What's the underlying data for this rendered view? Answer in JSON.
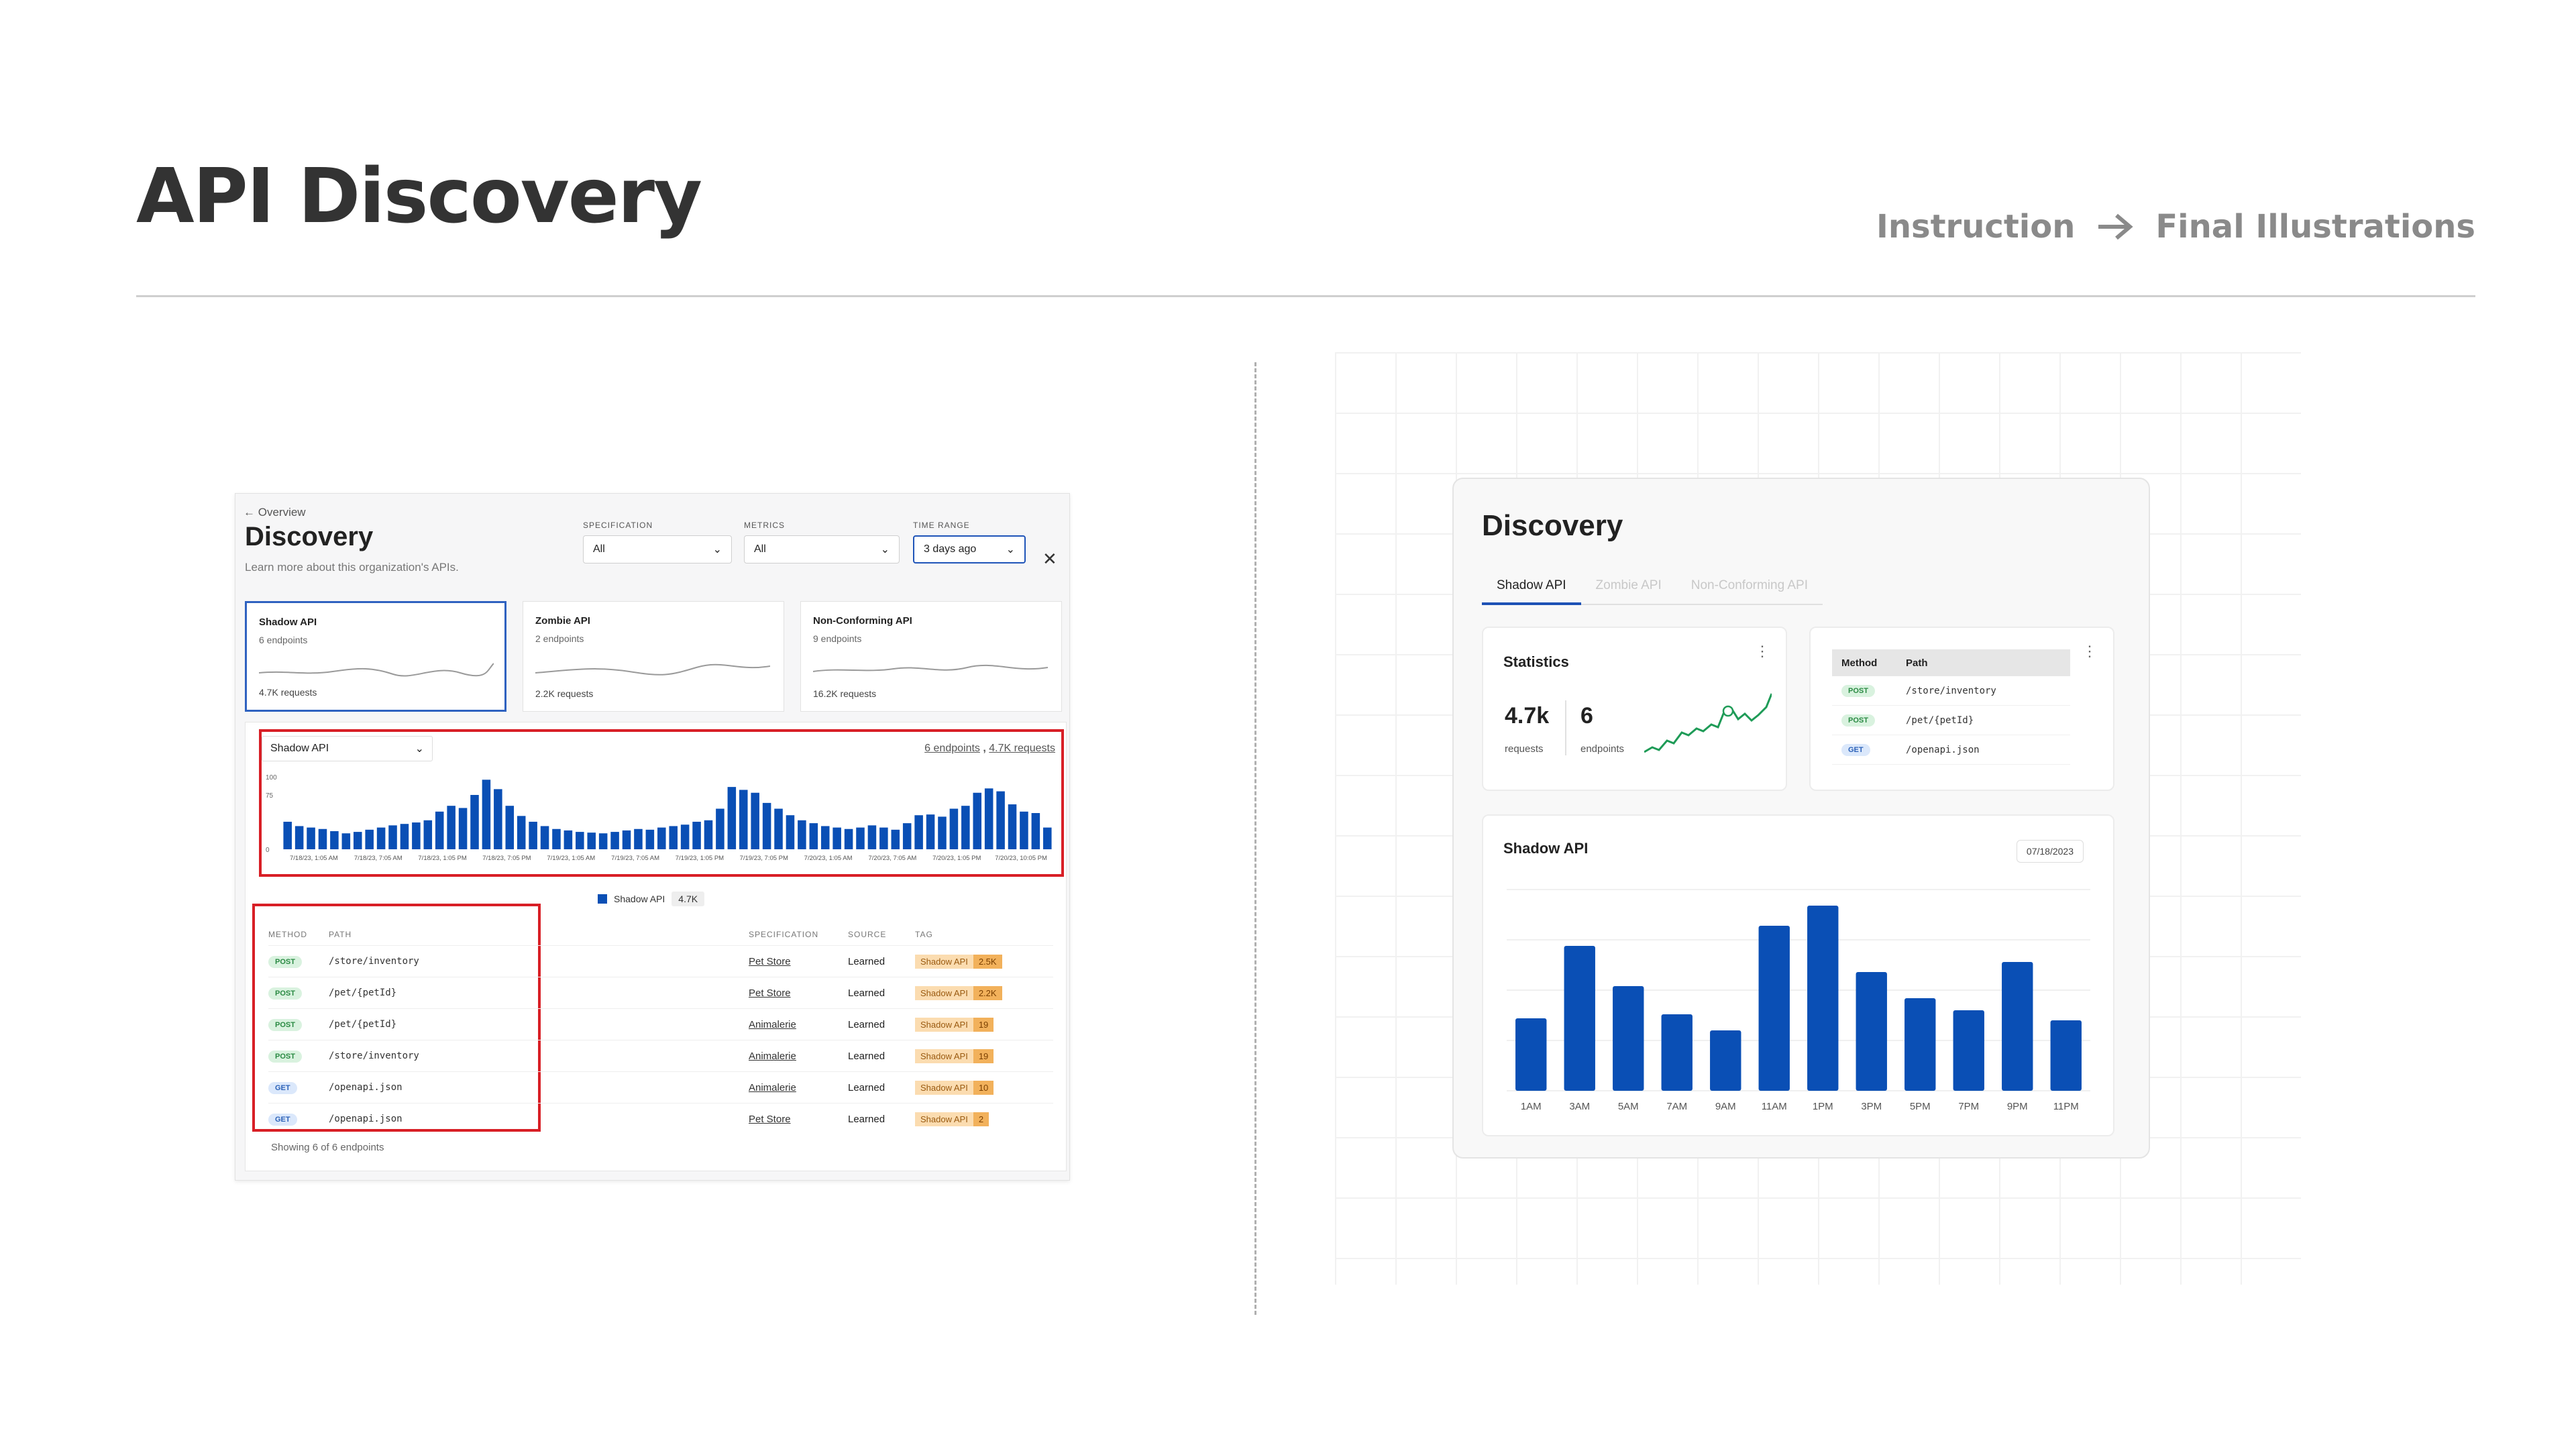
{
  "slide": {
    "title": "API Discovery",
    "nav": {
      "instruction": "Instruction",
      "final": "Final Illustrations"
    }
  },
  "colors": {
    "accent": "#0a4fb5",
    "highlight": "#d81f26",
    "post": "#2a8a43",
    "get": "#2c62b8"
  },
  "instruction": {
    "back_label": "Overview",
    "title": "Discovery",
    "subtitle": "Learn more about this organization's APIs.",
    "filters": [
      {
        "label": "SPECIFICATION",
        "value": "All"
      },
      {
        "label": "METRICS",
        "value": "All"
      },
      {
        "label": "TIME RANGE",
        "value": "3 days ago"
      }
    ],
    "cards": [
      {
        "title": "Shadow API",
        "endpoints": "6 endpoints",
        "requests": "4.7K requests"
      },
      {
        "title": "Zombie API",
        "endpoints": "2 endpoints",
        "requests": "2.2K requests"
      },
      {
        "title": "Non-Conforming API",
        "endpoints": "9 endpoints",
        "requests": "16.2K requests"
      }
    ],
    "series_select": "Shadow API",
    "links": {
      "endpoints": "6 endpoints",
      "sep": ",",
      "requests": "4.7K requests"
    },
    "legend": {
      "name": "Shadow API",
      "count": "4.7K"
    },
    "table": {
      "headers": [
        "METHOD",
        "PATH",
        "SPECIFICATION",
        "SOURCE",
        "TAG"
      ],
      "rows": [
        {
          "method": "POST",
          "path": "/store/inventory",
          "spec": "Pet Store",
          "source": "Learned",
          "tag": "Shadow API",
          "count": "2.5K"
        },
        {
          "method": "POST",
          "path": "/pet/{petId}",
          "spec": "Pet Store",
          "source": "Learned",
          "tag": "Shadow API",
          "count": "2.2K"
        },
        {
          "method": "POST",
          "path": "/pet/{petId}",
          "spec": "Animalerie",
          "source": "Learned",
          "tag": "Shadow API",
          "count": "19"
        },
        {
          "method": "POST",
          "path": "/store/inventory",
          "spec": "Animalerie",
          "source": "Learned",
          "tag": "Shadow API",
          "count": "19"
        },
        {
          "method": "GET",
          "path": "/openapi.json",
          "spec": "Animalerie",
          "source": "Learned",
          "tag": "Shadow API",
          "count": "10"
        },
        {
          "method": "GET",
          "path": "/openapi.json",
          "spec": "Pet Store",
          "source": "Learned",
          "tag": "Shadow API",
          "count": "2"
        }
      ]
    },
    "footer": "Showing 6 of 6 endpoints"
  },
  "final": {
    "title": "Discovery",
    "tabs": [
      "Shadow API",
      "Zombie API",
      "Non-Conforming API"
    ],
    "stats": {
      "title": "Statistics",
      "requests_value": "4.7k",
      "requests_label": "requests",
      "endpoints_value": "6",
      "endpoints_label": "endpoints"
    },
    "endpoints_table": {
      "headers": [
        "Method",
        "Path"
      ],
      "rows": [
        {
          "method": "POST",
          "path": "/store/inventory"
        },
        {
          "method": "POST",
          "path": "/pet/{petId}"
        },
        {
          "method": "GET",
          "path": "/openapi.json"
        }
      ]
    },
    "chart_title": "Shadow API",
    "date": "07/18/2023"
  },
  "chart_data": [
    {
      "type": "bar",
      "title": "",
      "ylim": [
        0,
        100
      ],
      "yticks": [
        "100",
        "75",
        "0"
      ],
      "xticks": [
        "7/18/23, 1:05 AM",
        "7/18/23, 7:05 AM",
        "7/18/23, 1:05 PM",
        "7/18/23, 7:05 PM",
        "7/19/23, 1:05 AM",
        "7/19/23, 7:05 AM",
        "7/19/23, 1:05 PM",
        "7/19/23, 7:05 PM",
        "7/20/23, 1:05 AM",
        "7/20/23, 7:05 AM",
        "7/20/23, 1:05 PM",
        "7/20/23, 10:05 PM"
      ],
      "series": [
        {
          "name": "Shadow API",
          "values": [
            38,
            32,
            30,
            28,
            25,
            22,
            24,
            27,
            30,
            33,
            35,
            37,
            40,
            52,
            60,
            57,
            75,
            96,
            83,
            60,
            46,
            38,
            32,
            28,
            26,
            24,
            23,
            22,
            24,
            26,
            28,
            27,
            30,
            32,
            34,
            38,
            40,
            56,
            86,
            82,
            78,
            64,
            56,
            47,
            40,
            36,
            32,
            30,
            28,
            30,
            33,
            30,
            27,
            36,
            47,
            48,
            45,
            56,
            60,
            78,
            84,
            80,
            62,
            52,
            50,
            30
          ]
        }
      ]
    },
    {
      "type": "bar",
      "title": "Shadow API",
      "categories": [
        "1AM",
        "3AM",
        "5AM",
        "7AM",
        "9AM",
        "11AM",
        "1PM",
        "3PM",
        "5PM",
        "7PM",
        "9PM",
        "11PM"
      ],
      "values": [
        36,
        72,
        52,
        38,
        30,
        82,
        92,
        59,
        46,
        40,
        64,
        35
      ],
      "ylim": [
        0,
        100
      ]
    }
  ]
}
